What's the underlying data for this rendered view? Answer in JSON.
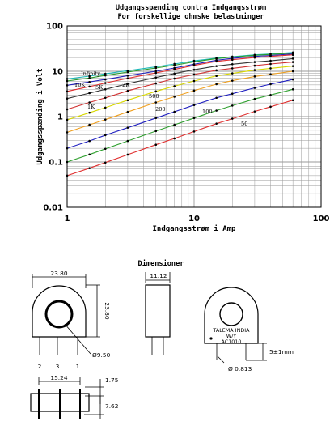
{
  "chart_data": {
    "type": "line",
    "title": "Udgangsspænding contra Indgangsstrøm",
    "subtitle": "For forskellige ohmske belastninger",
    "xlabel": "Indgangsstrøm i Amp",
    "ylabel": "Udgangsspænding i Volt",
    "xscale": "log",
    "yscale": "log",
    "xlim": [
      1,
      100
    ],
    "ylim": [
      0.01,
      100
    ],
    "xticks": [
      "1",
      "10",
      "100"
    ],
    "yticks": [
      "100",
      "10",
      "1",
      "0.1",
      "0.01"
    ],
    "grid": true,
    "legend": "none",
    "series": [
      {
        "name": "Infinity",
        "color": "#1db8b8",
        "x": [
          1,
          1.5,
          2,
          3,
          5,
          7,
          10,
          15,
          20,
          30,
          40,
          60
        ],
        "y": [
          6.8,
          7.8,
          8.8,
          10.3,
          12.5,
          14.5,
          17,
          19.5,
          21,
          23,
          24,
          26
        ]
      },
      {
        "name": "10K",
        "color": "#2a9a2a",
        "x": [
          1,
          1.5,
          2,
          3,
          5,
          7,
          10,
          15,
          20,
          30,
          40,
          60
        ],
        "y": [
          6.1,
          7.1,
          8.1,
          9.6,
          11.8,
          13.6,
          16.2,
          19,
          20.5,
          22.5,
          23.5,
          25
        ]
      },
      {
        "name": "5K",
        "color": "#2222bb",
        "x": [
          1,
          1.5,
          2,
          3,
          5,
          7,
          10,
          15,
          20,
          30,
          40,
          60
        ],
        "y": [
          4.9,
          5.8,
          6.6,
          8,
          10,
          11.8,
          14.3,
          17.5,
          19.2,
          21.2,
          22.3,
          24
        ]
      },
      {
        "name": "2K",
        "color": "#e03030",
        "x": [
          1,
          1.5,
          2,
          3,
          5,
          7,
          10,
          15,
          20,
          30,
          40,
          60
        ],
        "y": [
          3.6,
          4.6,
          5.5,
          7,
          9.2,
          11,
          13.5,
          16.5,
          18,
          20,
          21.2,
          23
        ]
      },
      {
        "name": "1K",
        "color": "#333333",
        "x": [
          1,
          1.5,
          2,
          3,
          5,
          7,
          10,
          15,
          20,
          30,
          40,
          60
        ],
        "y": [
          2.5,
          3.3,
          4,
          5.3,
          7.3,
          8.9,
          10.8,
          13,
          14.3,
          16,
          17,
          19
        ]
      },
      {
        "name": "",
        "color": "#d03030",
        "x": [
          1,
          1.5,
          2,
          3,
          5,
          7,
          10,
          15,
          20,
          30,
          40,
          60
        ],
        "y": [
          1.45,
          2.05,
          2.6,
          3.7,
          5.4,
          6.9,
          8.5,
          10.5,
          11.6,
          13.3,
          14.5,
          16
        ]
      },
      {
        "name": "500",
        "color": "#d8d800",
        "x": [
          1,
          1.5,
          2,
          3,
          5,
          7,
          10,
          15,
          20,
          30,
          40,
          60
        ],
        "y": [
          0.85,
          1.22,
          1.58,
          2.3,
          3.6,
          4.7,
          6.1,
          7.9,
          9,
          10.6,
          11.6,
          13
        ]
      },
      {
        "name": "200",
        "color": "#f0a020",
        "x": [
          1,
          1.5,
          2,
          3,
          5,
          7,
          10,
          15,
          20,
          30,
          40,
          60
        ],
        "y": [
          0.45,
          0.66,
          0.86,
          1.27,
          2.05,
          2.75,
          3.75,
          5.2,
          6.2,
          7.7,
          8.6,
          10
        ]
      },
      {
        "name": "100",
        "color": "#2020c0",
        "x": [
          1,
          1.5,
          2,
          3,
          5,
          7,
          10,
          15,
          20,
          30,
          40,
          60
        ],
        "y": [
          0.2,
          0.29,
          0.39,
          0.57,
          0.93,
          1.28,
          1.8,
          2.6,
          3.2,
          4.3,
          5.2,
          6.6
        ]
      },
      {
        "name": "50",
        "color": "#30a030",
        "x": [
          1,
          1.5,
          2,
          3,
          5,
          7,
          10,
          15,
          20,
          30,
          40,
          60
        ],
        "y": [
          0.1,
          0.146,
          0.195,
          0.29,
          0.48,
          0.66,
          0.93,
          1.36,
          1.75,
          2.45,
          3,
          4
        ]
      },
      {
        "name": "",
        "color": "#e03030",
        "x": [
          1,
          1.5,
          2,
          3,
          5,
          7,
          10,
          15,
          20,
          30,
          40,
          60
        ],
        "y": [
          0.05,
          0.073,
          0.097,
          0.145,
          0.24,
          0.33,
          0.47,
          0.7,
          0.9,
          1.3,
          1.65,
          2.3
        ]
      }
    ]
  },
  "dimensions": {
    "title": "Dimensioner",
    "width": "23.80",
    "height": "23.80",
    "depth": "11.12",
    "hole": "Ø9.50",
    "pins": [
      "2",
      "3",
      "1"
    ],
    "pin_pitch": "15.24",
    "pin_thickness": "1.75",
    "pin_length": "7.62",
    "pin_protrusion": "5±1mm",
    "wire_diameter": "Ø 0.813",
    "marking": [
      "TALEMA INDIA",
      "W/Y",
      "AC1010"
    ]
  },
  "colors": {
    "grid": "#9a9a9a",
    "axis": "#000000",
    "drawing": "#000000"
  }
}
